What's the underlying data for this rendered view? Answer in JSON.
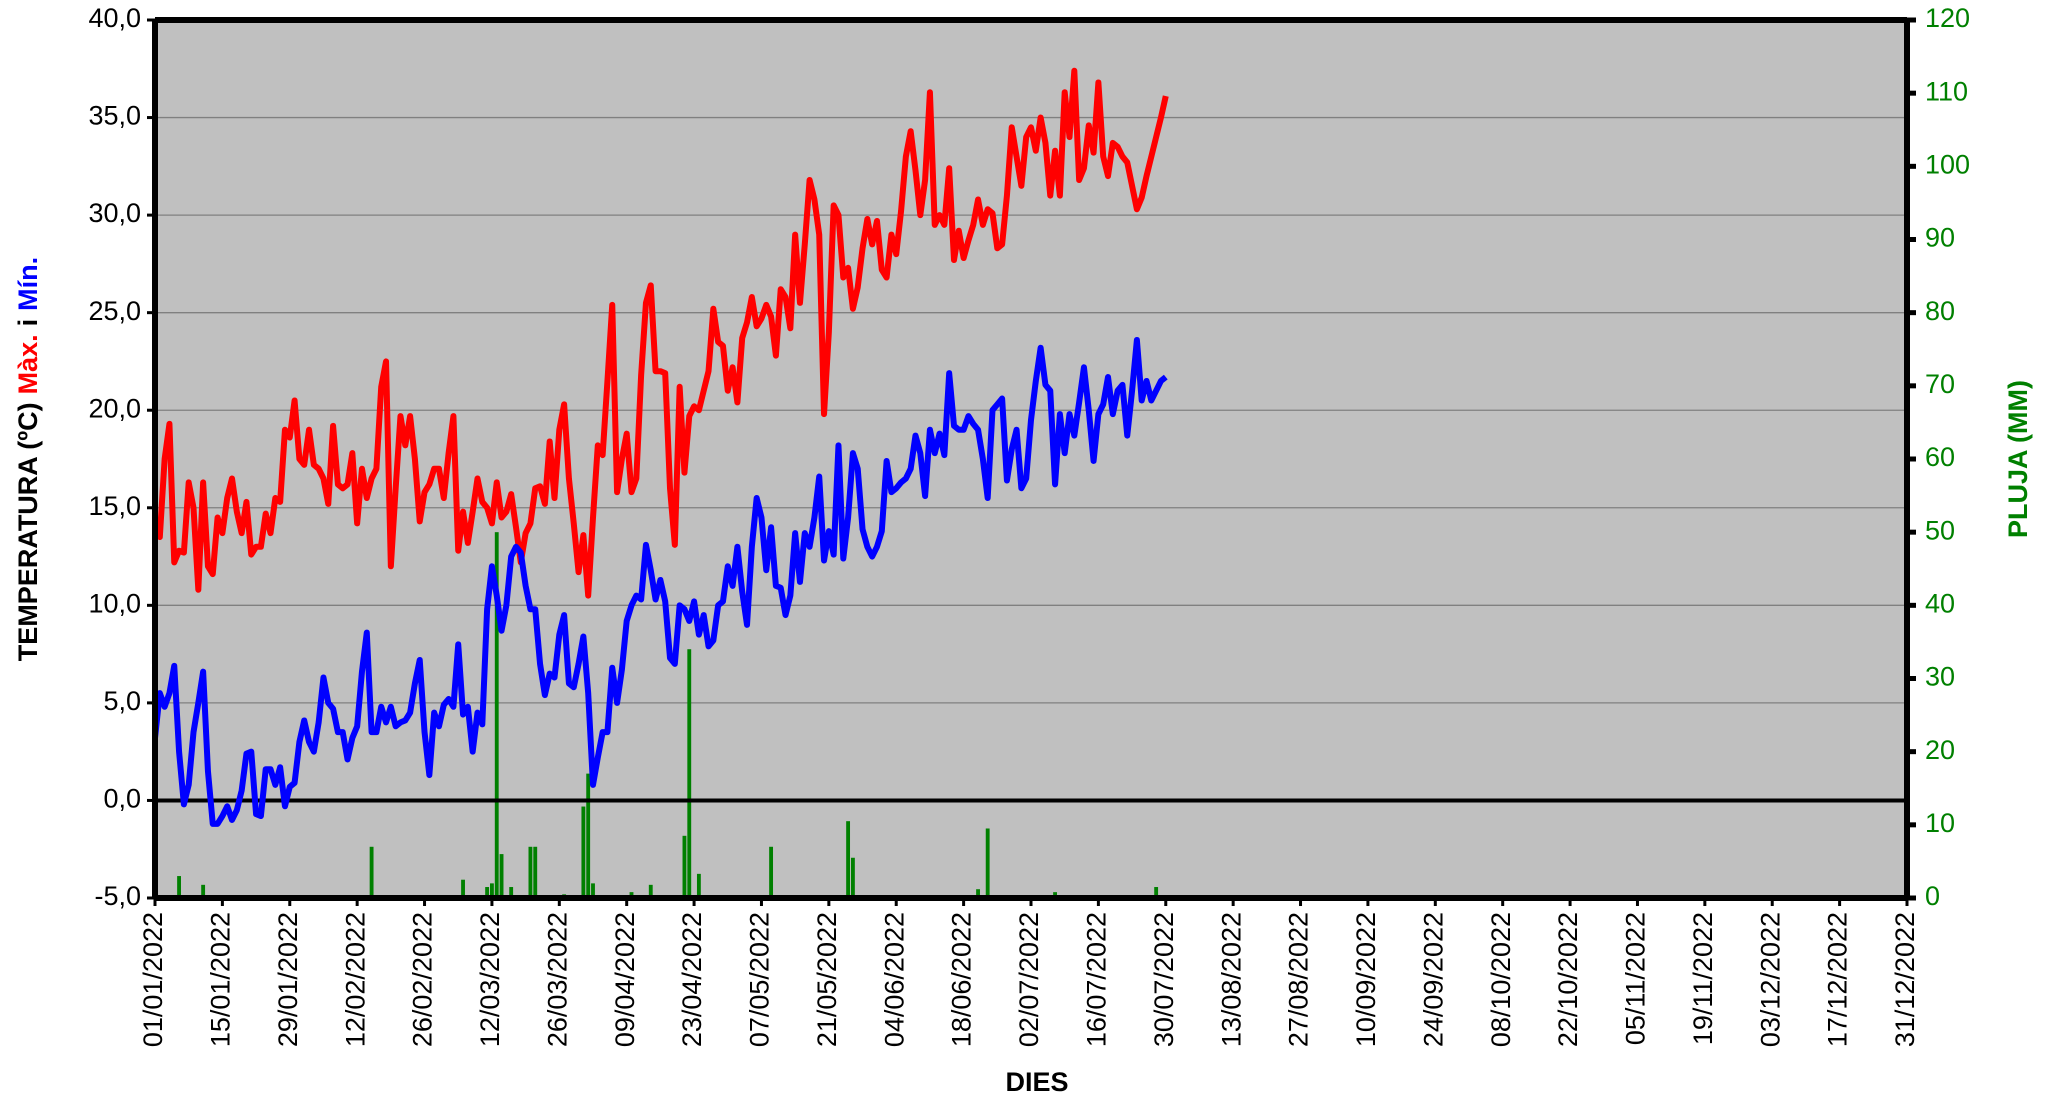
{
  "chart_data": {
    "type": "line",
    "x_label": "DIES",
    "y_label_parts": [
      {
        "text": "TEMPERATURA (ºC)",
        "color": "#000000"
      },
      {
        "text": "Màx.",
        "color": "#ff0000"
      },
      {
        "text": "i",
        "color": "#000000"
      },
      {
        "text": "Mín.",
        "color": "#0000ff"
      }
    ],
    "y2_label": "PLUJA (MM)",
    "y2_label_color": "#008000",
    "background": "#c0c0c0",
    "grid": true,
    "xlim": [
      0,
      364
    ],
    "xticks": [
      {
        "value": 0,
        "label": "01/01/2022"
      },
      {
        "value": 14,
        "label": "15/01/2022"
      },
      {
        "value": 28,
        "label": "29/01/2022"
      },
      {
        "value": 42,
        "label": "12/02/2022"
      },
      {
        "value": 56,
        "label": "26/02/2022"
      },
      {
        "value": 70,
        "label": "12/03/2022"
      },
      {
        "value": 84,
        "label": "26/03/2022"
      },
      {
        "value": 98,
        "label": "09/04/2022"
      },
      {
        "value": 112,
        "label": "23/04/2022"
      },
      {
        "value": 126,
        "label": "07/05/2022"
      },
      {
        "value": 140,
        "label": "21/05/2022"
      },
      {
        "value": 154,
        "label": "04/06/2022"
      },
      {
        "value": 168,
        "label": "18/06/2022"
      },
      {
        "value": 182,
        "label": "02/07/2022"
      },
      {
        "value": 196,
        "label": "16/07/2022"
      },
      {
        "value": 210,
        "label": "30/07/2022"
      },
      {
        "value": 224,
        "label": "13/08/2022"
      },
      {
        "value": 238,
        "label": "27/08/2022"
      },
      {
        "value": 252,
        "label": "10/09/2022"
      },
      {
        "value": 266,
        "label": "24/09/2022"
      },
      {
        "value": 280,
        "label": "08/10/2022"
      },
      {
        "value": 294,
        "label": "22/10/2022"
      },
      {
        "value": 308,
        "label": "05/11/2022"
      },
      {
        "value": 322,
        "label": "19/11/2022"
      },
      {
        "value": 336,
        "label": "03/12/2022"
      },
      {
        "value": 350,
        "label": "17/12/2022"
      },
      {
        "value": 364,
        "label": "31/12/2022"
      }
    ],
    "ylim": [
      -5,
      40
    ],
    "yticks": [
      {
        "value": -5,
        "label": "-5,0"
      },
      {
        "value": 0,
        "label": "0,0"
      },
      {
        "value": 5,
        "label": "5,0"
      },
      {
        "value": 10,
        "label": "10,0"
      },
      {
        "value": 15,
        "label": "15,0"
      },
      {
        "value": 20,
        "label": "20,0"
      },
      {
        "value": 25,
        "label": "25,0"
      },
      {
        "value": 30,
        "label": "30,0"
      },
      {
        "value": 35,
        "label": "35,0"
      },
      {
        "value": 40,
        "label": "40,0"
      }
    ],
    "y2lim": [
      0,
      120
    ],
    "y2ticks": [
      0,
      10,
      20,
      30,
      40,
      50,
      60,
      70,
      80,
      90,
      100,
      110,
      120
    ],
    "x": [
      0,
      1,
      2,
      3,
      4,
      5,
      6,
      7,
      8,
      9,
      10,
      11,
      12,
      13,
      14,
      15,
      16,
      17,
      18,
      19,
      20,
      21,
      22,
      23,
      24,
      25,
      26,
      27,
      28,
      29,
      30,
      31,
      32,
      33,
      34,
      35,
      36,
      37,
      38,
      39,
      40,
      41,
      42,
      43,
      44,
      45,
      46,
      47,
      48,
      49,
      50,
      51,
      52,
      53,
      54,
      55,
      56,
      57,
      58,
      59,
      60,
      61,
      62,
      63,
      64,
      65,
      66,
      67,
      68,
      69,
      70,
      71,
      72,
      73,
      74,
      75,
      76,
      77,
      78,
      79,
      80,
      81,
      82,
      83,
      84,
      85,
      86,
      87,
      88,
      89,
      90,
      91,
      92,
      93,
      94,
      95,
      96,
      97,
      98,
      99,
      100,
      101,
      102,
      103,
      104,
      105,
      106,
      107,
      108,
      109,
      110,
      111,
      112,
      113,
      114,
      115,
      116,
      117,
      118,
      119,
      120,
      121,
      122,
      123,
      124,
      125,
      126,
      127,
      128,
      129,
      130,
      131,
      132,
      133,
      134,
      135,
      136,
      137,
      138,
      139,
      140,
      141,
      142,
      143,
      144,
      145,
      146,
      147,
      148,
      149,
      150,
      151,
      152,
      153,
      154,
      155,
      156,
      157,
      158,
      159,
      160,
      161,
      162,
      163,
      164,
      165,
      166,
      167,
      168,
      169,
      170,
      171,
      172,
      173,
      174,
      175,
      176,
      177,
      178,
      179,
      180,
      181,
      182,
      183,
      184,
      185,
      186,
      187,
      188,
      189,
      190,
      191,
      192,
      193,
      194,
      195,
      196,
      197,
      198,
      199,
      200,
      201,
      202,
      203,
      204,
      205,
      206,
      207,
      208,
      209,
      210
    ],
    "series": [
      {
        "type": "line",
        "color": "#ff0000",
        "values": [
          14,
          13.5,
          17.5,
          19.3,
          12.2,
          12.8,
          12.7,
          16.3,
          15,
          10.8,
          16.3,
          12,
          11.6,
          14.5,
          13.7,
          15.5,
          16.5,
          14.8,
          13.7,
          15.3,
          12.6,
          13,
          13,
          14.7,
          13.7,
          15.5,
          15.3,
          19,
          18.6,
          20.5,
          17.5,
          17.2,
          19,
          17.2,
          17,
          16.5,
          15.2,
          19.2,
          16.2,
          16,
          16.2,
          17.8,
          14.2,
          17,
          15.5,
          16.5,
          17,
          21.2,
          22.5,
          12,
          16,
          19.7,
          18.2,
          19.7,
          17.5,
          14.3,
          15.8,
          16.2,
          17,
          17,
          15.5,
          17.8,
          19.7,
          12.8,
          14.8,
          13.2,
          14.8,
          16.5,
          15.3,
          15,
          14.2,
          16.3,
          14.5,
          14.8,
          15.7,
          14,
          12.2,
          13.7,
          14.2,
          16,
          16.1,
          15.2,
          18.4,
          15.5,
          19,
          20.3,
          16.5,
          14.2,
          11.7,
          13.6,
          10.5,
          14.5,
          18.2,
          17.7,
          21.5,
          25.4,
          15.8,
          17.5,
          18.8,
          15.8,
          16.5,
          21.8,
          25.5,
          26.4,
          22,
          22,
          21.9,
          16,
          13.1,
          21.2,
          16.8,
          19.7,
          20.2,
          20,
          21,
          22,
          25.2,
          23.5,
          23.3,
          21,
          22.2,
          20.4,
          23.7,
          24.5,
          25.8,
          24.3,
          24.7,
          25.4,
          24.8,
          22.8,
          26.2,
          25.8,
          24.2,
          29,
          25.5,
          28.5,
          31.8,
          30.8,
          29,
          19.8,
          24,
          30.5,
          30,
          26.8,
          27.3,
          25.2,
          26.3,
          28.3,
          29.8,
          28.5,
          29.7,
          27.2,
          26.8,
          29,
          28,
          30.2,
          33,
          34.3,
          32.3,
          30,
          31.8,
          36.3,
          29.5,
          30,
          29.5,
          32.4,
          27.7,
          29.2,
          27.8,
          28.7,
          29.5,
          30.8,
          29.5,
          30.3,
          30.1,
          28.3,
          28.5,
          31,
          34.5,
          33,
          31.5,
          34,
          34.5,
          33.3,
          35,
          33.7,
          31,
          33.3,
          31,
          36.3,
          34,
          37.4,
          31.8,
          32.4,
          34.6,
          33.2,
          36.8,
          33,
          32,
          33.7,
          33.5,
          33,
          32.7,
          31.5,
          30.3,
          30.9,
          32,
          33,
          34,
          35,
          36.1
        ]
      },
      {
        "type": "line",
        "color": "#0000ff",
        "values": [
          3.2,
          5.5,
          4.8,
          5.5,
          6.9,
          2.5,
          -0.2,
          0.8,
          3.5,
          5,
          6.6,
          1.5,
          -1.2,
          -1.2,
          -0.8,
          -0.3,
          -1,
          -0.5,
          0.5,
          2.4,
          2.5,
          -0.7,
          -0.8,
          1.6,
          1.6,
          0.8,
          1.7,
          -0.3,
          0.7,
          0.9,
          3,
          4.1,
          3,
          2.5,
          4,
          6.3,
          5,
          4.7,
          3.5,
          3.5,
          2.1,
          3.2,
          3.8,
          6.6,
          8.6,
          3.5,
          3.5,
          4.8,
          4,
          4.8,
          3.8,
          4,
          4.1,
          4.5,
          6,
          7.2,
          3.5,
          1.3,
          4.5,
          3.8,
          4.9,
          5.2,
          4.8,
          8,
          4.4,
          4.8,
          2.5,
          4.5,
          3.9,
          9.8,
          12,
          10.5,
          8.7,
          10,
          12.5,
          13,
          12.7,
          11,
          9.8,
          9.8,
          7,
          5.4,
          6.5,
          6.3,
          8.5,
          9.5,
          6,
          5.8,
          7,
          8.4,
          5.5,
          0.8,
          2.2,
          3.5,
          3.5,
          6.8,
          5,
          6.7,
          9.2,
          10,
          10.5,
          10.3,
          13.1,
          11.8,
          10.3,
          11.3,
          10.2,
          7.3,
          7,
          10,
          9.8,
          9.2,
          10.2,
          8.5,
          9.5,
          7.9,
          8.2,
          10,
          10.2,
          12,
          11,
          13,
          10.7,
          9,
          13,
          15.5,
          14.5,
          11.8,
          14,
          11,
          10.9,
          9.5,
          10.5,
          13.7,
          11.2,
          13.7,
          13,
          14.5,
          16.6,
          12.3,
          13.8,
          12.6,
          18.2,
          12.4,
          14.5,
          17.8,
          17,
          13.9,
          13,
          12.5,
          13,
          13.8,
          17.4,
          15.8,
          16,
          16.3,
          16.5,
          17,
          18.7,
          17.8,
          15.6,
          19,
          17.8,
          18.8,
          17.7,
          21.9,
          19.2,
          19,
          19,
          19.7,
          19.3,
          19,
          17.5,
          15.5,
          20,
          20.3,
          20.6,
          16.4,
          18,
          19,
          16,
          16.5,
          19.5,
          21.5,
          23.2,
          21.3,
          21,
          16.2,
          19.8,
          17.8,
          19.8,
          18.7,
          20.4,
          22.2,
          20,
          17.4,
          19.8,
          20.3,
          21.7,
          19.8,
          21,
          21.3,
          18.7,
          21,
          23.6,
          20.5,
          21.5,
          20.5,
          21,
          21.5,
          21.7
        ]
      },
      {
        "type": "bar",
        "axis": "y2",
        "color": "#008000",
        "values": [
          0,
          0,
          0,
          0,
          0.2,
          3,
          0,
          0,
          0,
          0,
          1.8,
          0,
          0,
          0,
          0,
          0,
          0,
          0,
          0,
          0,
          0,
          0,
          0,
          0,
          0,
          0,
          0.3,
          0,
          0,
          0,
          0,
          0,
          0,
          0,
          0,
          0,
          0,
          0,
          0,
          0,
          0,
          0,
          0,
          0,
          0,
          7,
          0,
          0,
          0,
          0,
          0,
          0,
          0,
          0,
          0,
          0,
          0,
          0,
          0,
          0,
          0,
          0,
          0,
          0,
          2.5,
          0,
          0,
          0,
          0,
          1.5,
          2,
          50,
          6,
          0,
          1.5,
          0,
          0,
          0,
          7,
          7,
          0,
          0,
          0,
          0,
          0,
          0.5,
          0,
          0,
          0,
          12.5,
          17,
          2,
          0,
          0,
          0,
          0,
          0,
          0,
          0,
          0.8,
          0,
          0,
          0,
          1.8,
          0,
          0,
          0,
          0,
          0,
          0,
          8.5,
          34,
          0,
          3.3,
          0,
          0,
          0,
          0,
          0,
          0.3,
          0,
          0.3,
          0,
          0,
          0,
          0,
          0,
          0,
          7,
          0,
          0,
          0,
          0,
          0,
          0,
          0,
          0,
          0,
          0,
          0,
          0,
          0,
          0,
          0,
          10.5,
          5.5,
          0,
          0,
          0,
          0,
          0,
          0,
          0,
          0,
          0,
          0,
          0,
          0,
          0,
          0,
          0,
          0,
          0,
          0,
          0,
          0,
          0.3,
          0,
          0,
          0,
          0,
          1.2,
          0,
          9.5,
          0,
          0,
          0,
          0,
          0,
          0,
          0,
          0,
          0,
          0,
          0,
          0,
          0,
          0.8,
          0,
          0,
          0,
          0,
          0,
          0,
          0,
          0,
          0,
          0,
          0,
          0,
          0,
          0,
          0,
          0,
          0,
          0,
          0,
          0,
          1.5,
          0,
          0
        ]
      }
    ]
  }
}
